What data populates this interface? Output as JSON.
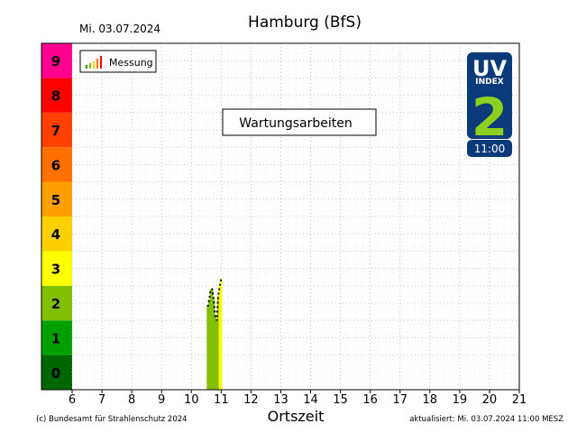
{
  "date_label": "Mi. 03.07.2024",
  "station_title": "Hamburg (BfS)",
  "legend_label": "Messung",
  "notice": "Wartungsarbeiten",
  "logo": {
    "uv": "UV",
    "index": "INDEX",
    "value": "2",
    "time": "11:00"
  },
  "copyright": "(c) Bundesamt für Strahlenschutz 2024",
  "updated": "aktualisiert: Mi. 03.07.2024  11:00  MESZ",
  "colors": {
    "uv_scale": [
      "#006600",
      "#00a000",
      "#80c000",
      "#ffff00",
      "#ffd000",
      "#ffa000",
      "#ff7000",
      "#ff4000",
      "#ff0000",
      "#ff0090"
    ],
    "logo_bg": "#0b3a7a",
    "logo_value": "#8ccf1e"
  },
  "chart_data": {
    "type": "area",
    "xlabel": "Ortszeit",
    "ylabel": "",
    "title": "Hamburg (BfS)",
    "xlim": [
      5,
      21
    ],
    "ylim": [
      -0.5,
      9.5
    ],
    "xticks": [
      6,
      7,
      8,
      9,
      10,
      11,
      12,
      13,
      14,
      15,
      16,
      17,
      18,
      19,
      20,
      21
    ],
    "uv_levels": [
      0,
      1,
      2,
      3,
      4,
      5,
      6,
      7,
      8,
      9
    ],
    "grid": true,
    "legend_position": "top-left",
    "series": [
      {
        "name": "Messung",
        "x": [
          10.55,
          10.6,
          10.65,
          10.7,
          10.75,
          10.8,
          10.85,
          10.9,
          10.95,
          11.0
        ],
        "values": [
          1.9,
          2.1,
          2.4,
          2.4,
          2.1,
          1.6,
          1.5,
          2.2,
          2.5,
          2.7
        ]
      }
    ]
  }
}
